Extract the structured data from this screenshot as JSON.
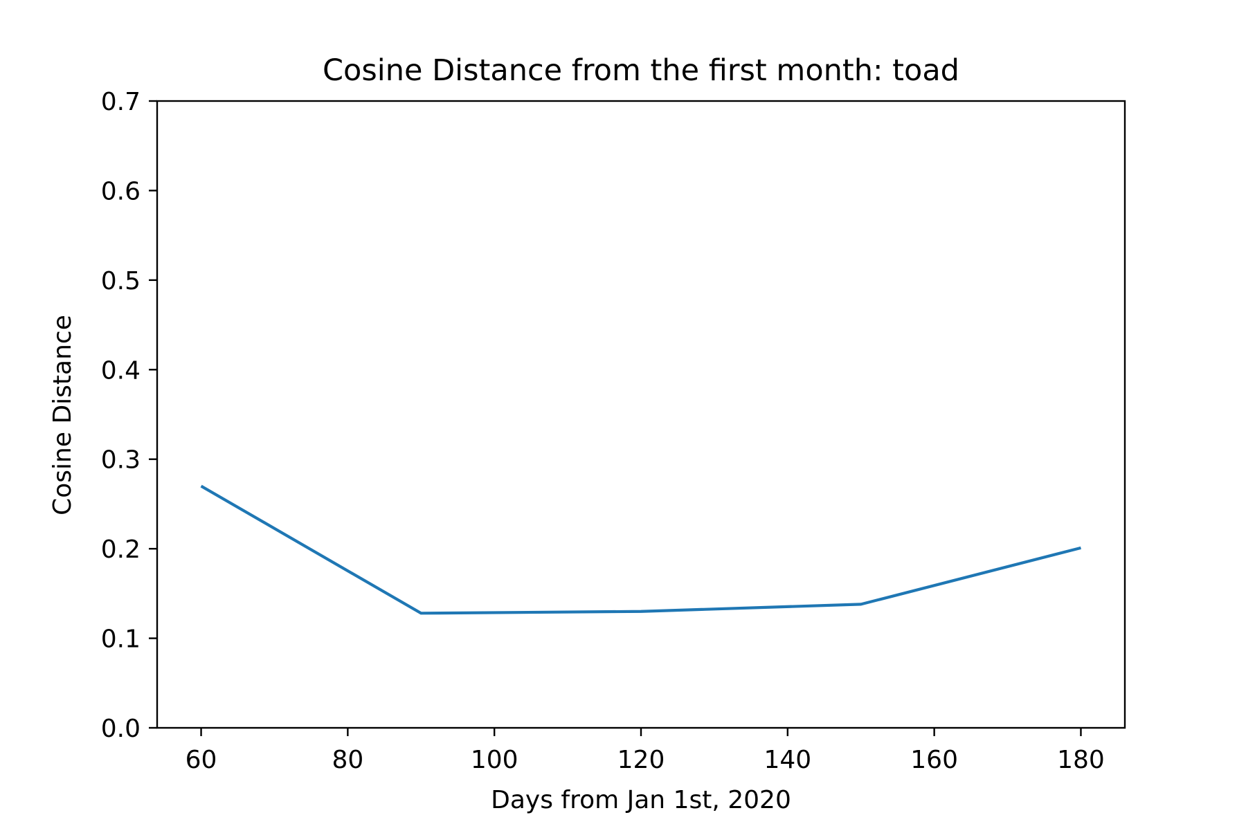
{
  "chart_data": {
    "type": "line",
    "title": "Cosine Distance from the first month: toad",
    "xlabel": "Days from Jan 1st, 2020",
    "ylabel": "Cosine Distance",
    "xlim": [
      54,
      186
    ],
    "ylim": [
      0.0,
      0.7
    ],
    "x_ticks": [
      60,
      80,
      100,
      120,
      140,
      160,
      180
    ],
    "x_tick_labels": [
      "60",
      "80",
      "100",
      "120",
      "140",
      "160",
      "180"
    ],
    "y_ticks": [
      0.0,
      0.1,
      0.2,
      0.3,
      0.4,
      0.5,
      0.6,
      0.7
    ],
    "y_tick_labels": [
      "0.0",
      "0.1",
      "0.2",
      "0.3",
      "0.4",
      "0.5",
      "0.6",
      "0.7"
    ],
    "grid": false,
    "legend": false,
    "series": [
      {
        "color": "#1f77b4",
        "x": [
          60,
          90,
          120,
          150,
          180
        ],
        "y": [
          0.27,
          0.128,
          0.13,
          0.138,
          0.201
        ]
      }
    ]
  }
}
